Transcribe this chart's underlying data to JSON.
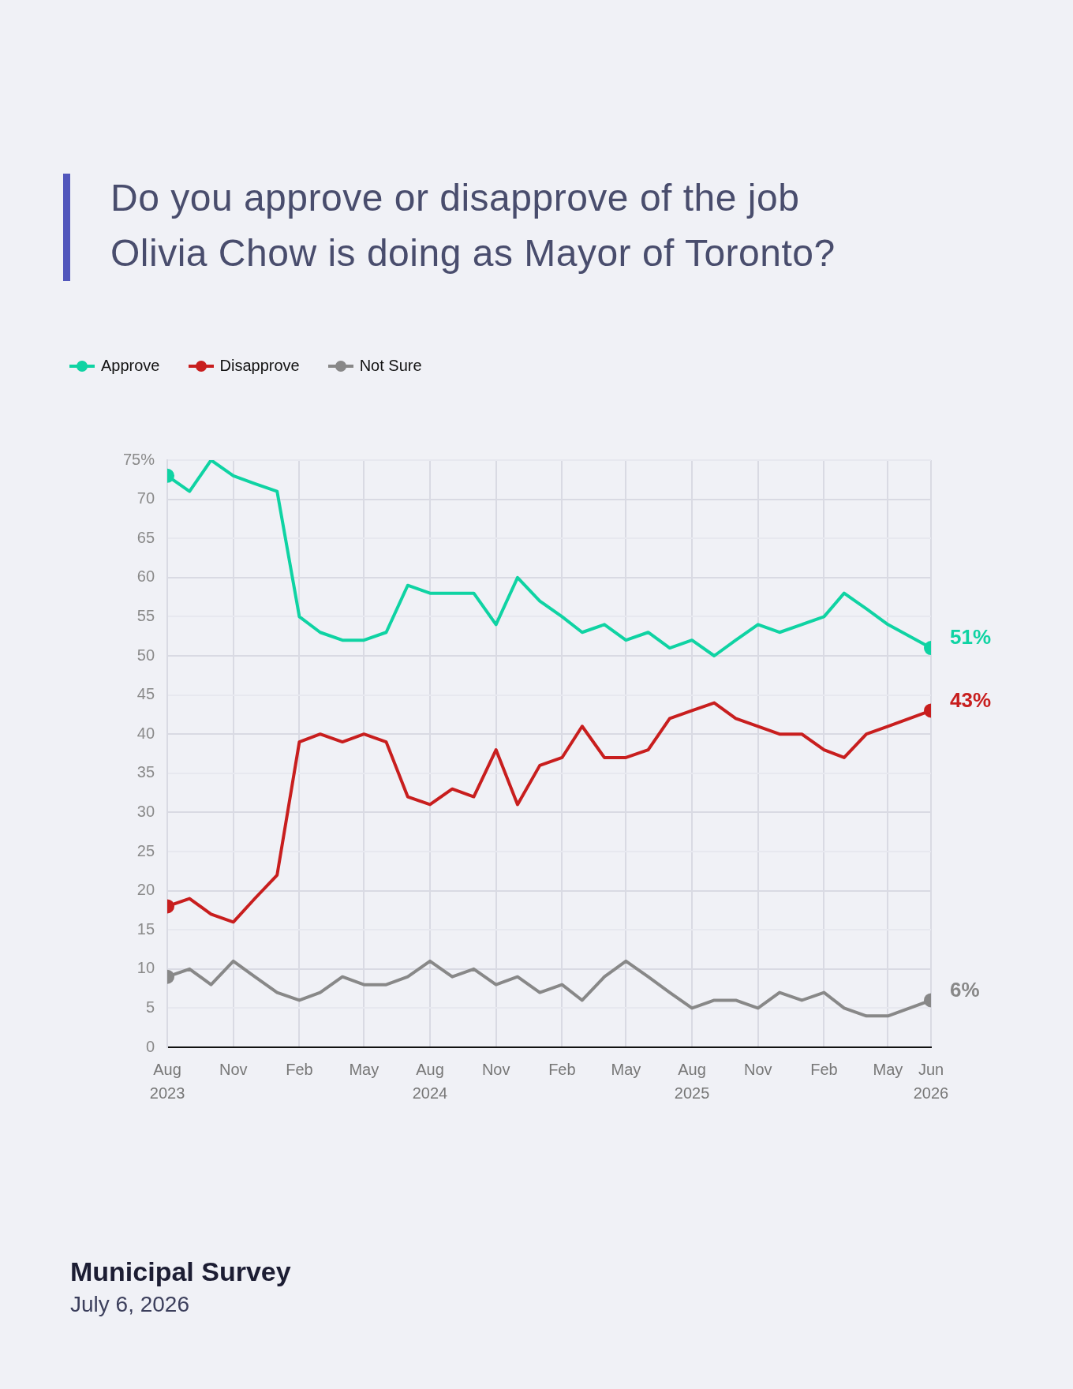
{
  "chart_data": {
    "type": "line",
    "title": "Do you approve or disapprove of the job Olivia Chow is doing as Mayor of Toronto?",
    "annotations": [
      "Municipal Survey",
      "July 6, 2026"
    ],
    "x": [
      "2023-08-01",
      "2023-09-01",
      "2023-10-01",
      "2023-11-01",
      "2023-12-01",
      "2024-01-01",
      "2024-02-01",
      "2024-03-01",
      "2024-04-01",
      "2024-05-01",
      "2024-06-01",
      "2024-07-01",
      "2024-08-01",
      "2024-09-01",
      "2024-10-01",
      "2024-11-01",
      "2024-12-01",
      "2025-01-01",
      "2025-02-01",
      "2025-03-01",
      "2025-04-01",
      "2025-05-01",
      "2025-06-01",
      "2025-07-01",
      "2025-08-01",
      "2025-09-01",
      "2025-10-01",
      "2025-11-01",
      "2025-12-01",
      "2026-01-01",
      "2026-02-01",
      "2026-03-01",
      "2026-04-01",
      "2026-05-01",
      "2026-06-30"
    ],
    "series": [
      {
        "name": "Approve",
        "color": "#0fd3a3",
        "values": [
          73,
          71,
          75,
          73,
          72,
          71,
          55,
          53,
          52,
          52,
          53,
          59,
          58,
          58,
          58,
          54,
          60,
          57,
          55,
          53,
          54,
          52,
          53,
          51,
          52,
          50,
          52,
          54,
          53,
          54,
          55,
          58,
          56,
          54,
          51
        ],
        "value_labels": [
          null,
          null,
          null,
          null,
          null,
          null,
          null,
          null,
          null,
          null,
          null,
          null,
          null,
          null,
          null,
          null,
          null,
          null,
          null,
          null,
          null,
          null,
          null,
          null,
          null,
          null,
          null,
          null,
          null,
          null,
          null,
          null,
          null,
          null,
          "51%"
        ]
      },
      {
        "name": "Disapprove",
        "color": "#c81e1e",
        "values": [
          18,
          19,
          17,
          16,
          19,
          22,
          39,
          40,
          39,
          40,
          39,
          32,
          31,
          33,
          32,
          38,
          31,
          36,
          37,
          41,
          37,
          37,
          38,
          42,
          43,
          44,
          42,
          41,
          40,
          40,
          38,
          37,
          40,
          41,
          43
        ],
        "value_labels": [
          null,
          null,
          null,
          null,
          null,
          null,
          null,
          null,
          null,
          null,
          null,
          null,
          null,
          null,
          null,
          null,
          null,
          null,
          null,
          null,
          null,
          null,
          null,
          null,
          null,
          null,
          null,
          null,
          null,
          null,
          null,
          null,
          null,
          null,
          "43%"
        ]
      },
      {
        "name": "Not Sure",
        "color": "#888888",
        "values": [
          9,
          10,
          8,
          11,
          9,
          7,
          6,
          7,
          9,
          8,
          8,
          9,
          11,
          9,
          10,
          8,
          9,
          7,
          8,
          6,
          9,
          11,
          9,
          7,
          5,
          6,
          6,
          5,
          7,
          6,
          7,
          5,
          4,
          4,
          6
        ],
        "value_labels": [
          null,
          null,
          null,
          null,
          null,
          null,
          null,
          null,
          null,
          null,
          null,
          null,
          null,
          null,
          null,
          null,
          null,
          null,
          null,
          null,
          null,
          null,
          null,
          null,
          null,
          null,
          null,
          null,
          null,
          null,
          null,
          null,
          null,
          null,
          "6%"
        ]
      }
    ],
    "xlim": [
      "2023-08-01",
      "2026-06-30"
    ],
    "xticks": [
      {
        "value": "2023-08-01",
        "label": "Aug 2023"
      },
      {
        "value": "2023-11-01",
        "label": "Nov"
      },
      {
        "value": "2024-02-01",
        "label": "Feb"
      },
      {
        "value": "2024-05-01",
        "label": "May"
      },
      {
        "value": "2024-08-01",
        "label": "Aug 2024"
      },
      {
        "value": "2024-11-01",
        "label": "Nov"
      },
      {
        "value": "2025-02-01",
        "label": "Feb"
      },
      {
        "value": "2025-05-01",
        "label": "May"
      },
      {
        "value": "2025-08-01",
        "label": "Aug 2025"
      },
      {
        "value": "2025-11-01",
        "label": "Nov"
      },
      {
        "value": "2026-02-01",
        "label": "Feb"
      },
      {
        "value": "2026-05-01",
        "label": "May"
      },
      {
        "value": "2026-06-30",
        "label": "Jun 2026"
      }
    ],
    "ylim": [
      0,
      75
    ],
    "yticks": [
      0,
      5,
      10,
      15,
      20,
      25,
      30,
      35,
      40,
      45,
      50,
      55,
      60,
      65,
      70,
      {
        "value": 75,
        "label": "75%"
      }
    ],
    "grid": true,
    "legend": "top left",
    "line_style": "solid"
  }
}
